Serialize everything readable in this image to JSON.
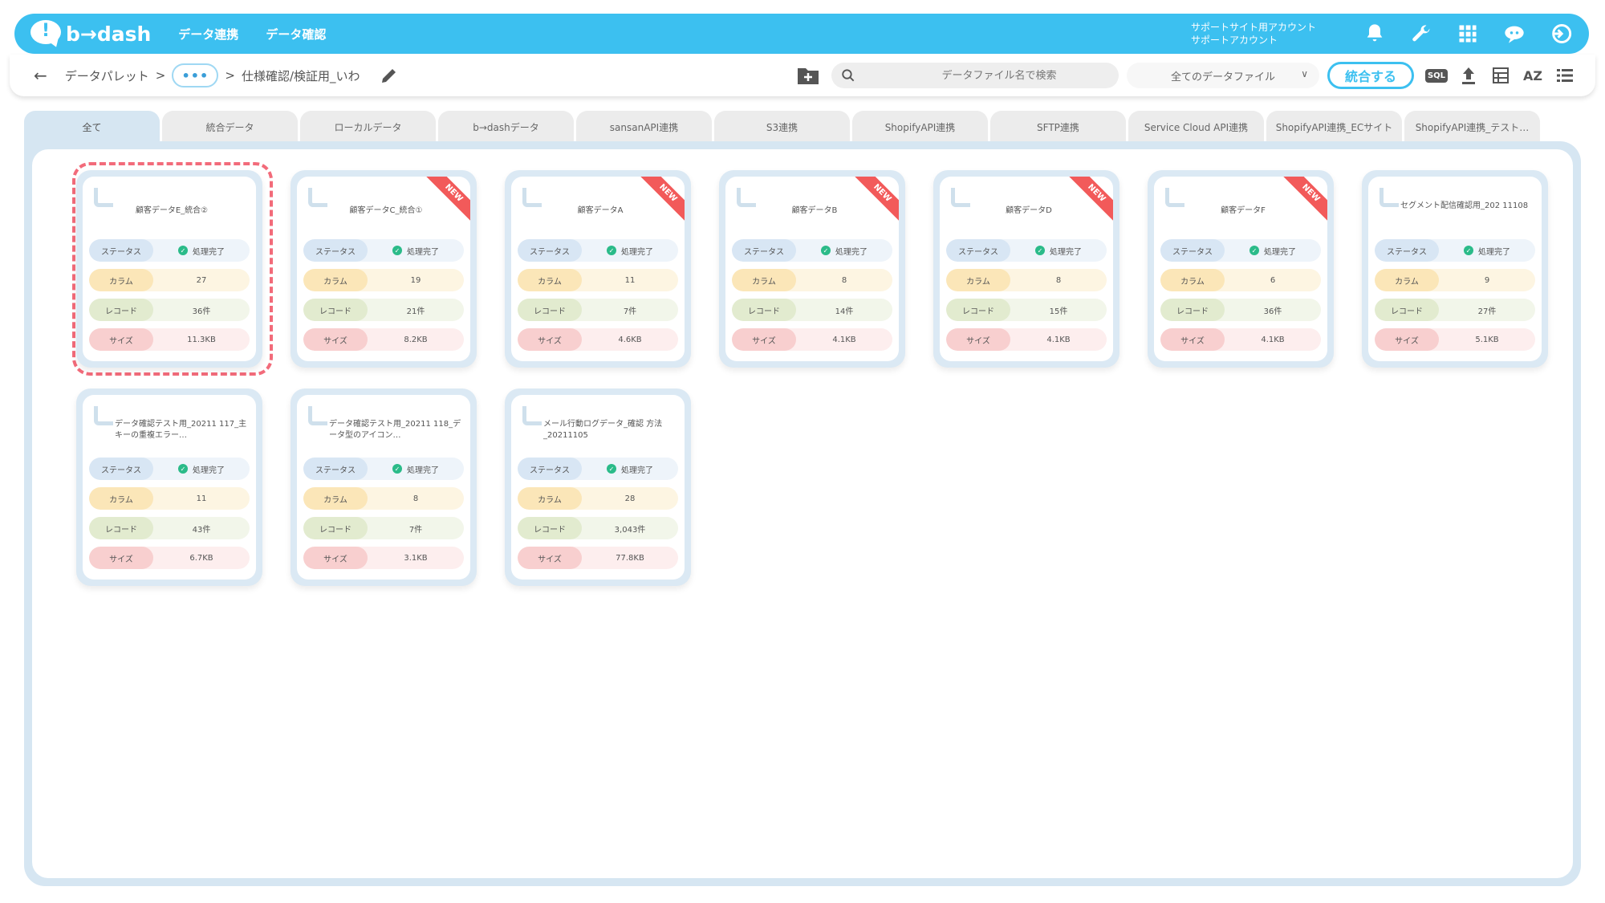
{
  "header": {
    "logo_text": "b→dash",
    "nav": [
      "データ連携",
      "データ確認"
    ],
    "account_line1": "サポートサイト用アカウント",
    "account_line2": "サポートアカウント"
  },
  "toolbar": {
    "breadcrumb_root": "データパレット",
    "breadcrumb_sep": ">",
    "breadcrumb_more": "•••",
    "breadcrumb_current": "仕様確認/検証用_いわ",
    "search_placeholder": "データファイル名で検索",
    "filter_value": "全てのデータファイル",
    "merge_button": "統合する",
    "sql_label": "SQL",
    "sort_label": "AZ"
  },
  "tabs": [
    {
      "label": "全て",
      "active": true
    },
    {
      "label": "統合データ"
    },
    {
      "label": "ローカルデータ"
    },
    {
      "label": "b→dashデータ"
    },
    {
      "label": "sansanAPI連携"
    },
    {
      "label": "S3連携"
    },
    {
      "label": "ShopifyAPI連携"
    },
    {
      "label": "SFTP連携"
    },
    {
      "label": "Service Cloud API連携"
    },
    {
      "label": "ShopifyAPI連携_ECサイト"
    },
    {
      "label": "ShopifyAPI連携_テスト…"
    }
  ],
  "labels": {
    "status": "ステータス",
    "column": "カラム",
    "record": "レコード",
    "size": "サイズ",
    "new": "NEW"
  },
  "cards": [
    {
      "title": "顧客データE_統合②",
      "status": "処理完了",
      "columns": "27",
      "records": "36件",
      "size": "11.3KB",
      "new": false,
      "highlighted": true
    },
    {
      "title": "顧客データC_統合①",
      "status": "処理完了",
      "columns": "19",
      "records": "21件",
      "size": "8.2KB",
      "new": true
    },
    {
      "title": "顧客データA",
      "status": "処理完了",
      "columns": "11",
      "records": "7件",
      "size": "4.6KB",
      "new": true
    },
    {
      "title": "顧客データB",
      "status": "処理完了",
      "columns": "8",
      "records": "14件",
      "size": "4.1KB",
      "new": true
    },
    {
      "title": "顧客データD",
      "status": "処理完了",
      "columns": "8",
      "records": "15件",
      "size": "4.1KB",
      "new": true
    },
    {
      "title": "顧客データF",
      "status": "処理完了",
      "columns": "6",
      "records": "36件",
      "size": "4.1KB",
      "new": true
    },
    {
      "title": "セグメント配信確認用_202 11108",
      "status": "処理完了",
      "columns": "9",
      "records": "27件",
      "size": "5.1KB",
      "new": false
    },
    {
      "title": "データ確認テスト用_20211 117_主キーの重複エラー…",
      "status": "処理完了",
      "columns": "11",
      "records": "43件",
      "size": "6.7KB",
      "new": false
    },
    {
      "title": "データ確認テスト用_20211 118_データ型のアイコン…",
      "status": "処理完了",
      "columns": "8",
      "records": "7件",
      "size": "3.1KB",
      "new": false
    },
    {
      "title": "メール行動ログデータ_確認 方法_20211105",
      "status": "処理完了",
      "columns": "28",
      "records": "3,043件",
      "size": "77.8KB",
      "new": false
    }
  ],
  "colors": {
    "brand": "#3cc0f0",
    "highlight": "#f26b7a",
    "new_ribbon": "#f25a5a",
    "status_ok": "#2bbb89"
  }
}
